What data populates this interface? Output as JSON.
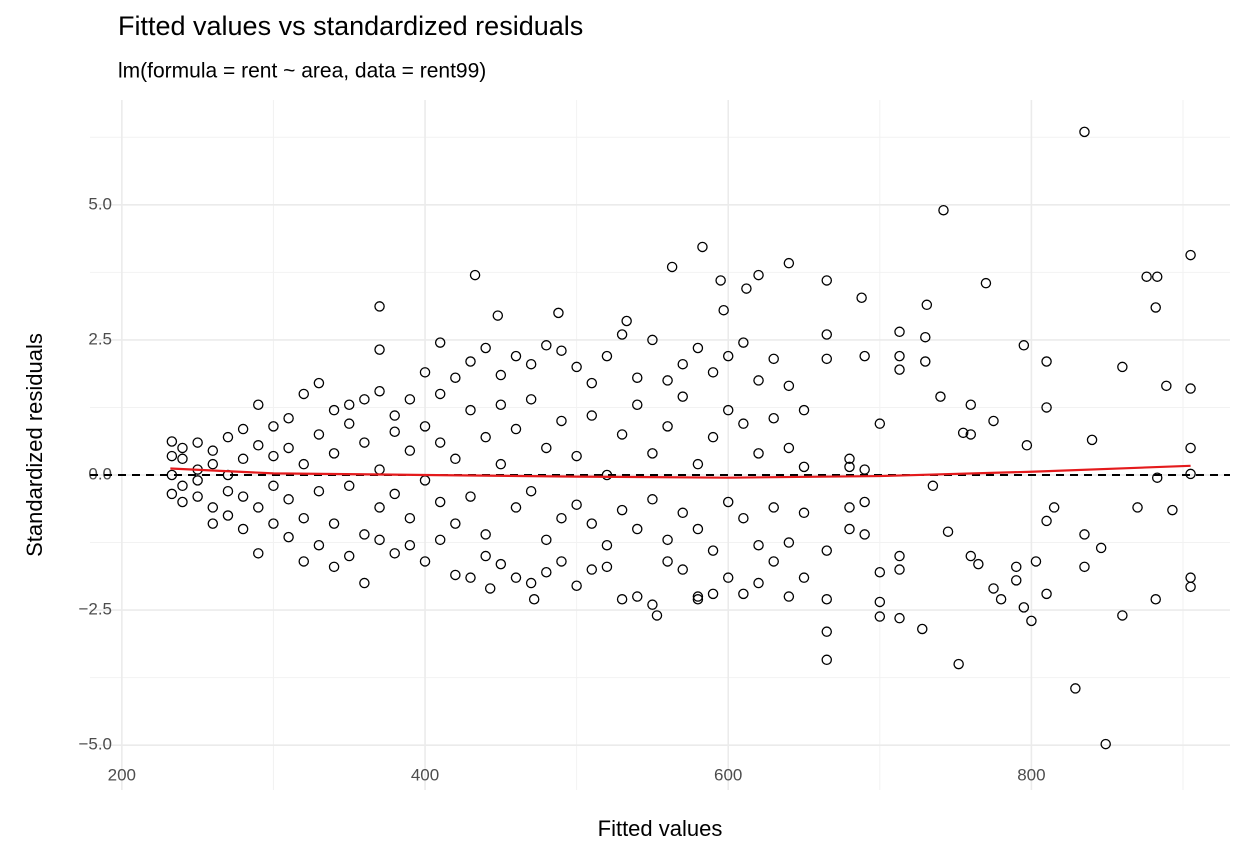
{
  "chart_data": {
    "type": "scatter",
    "title": "Fitted values vs standardized residuals",
    "subtitle": "lm(formula = rent ~ area, data = rent99)",
    "x_label": "Fitted values",
    "y_label": "Standardized residuals",
    "xlim": [
      179,
      931
    ],
    "ylim": [
      -5.83,
      6.94
    ],
    "xticks": [
      200,
      400,
      600,
      800
    ],
    "yticks": [
      {
        "value": 5,
        "label": "5.0"
      },
      {
        "value": 2.5,
        "label": "2.5"
      },
      {
        "value": 0,
        "label": "0.0"
      },
      {
        "value": -2.5,
        "label": "−2.5"
      },
      {
        "value": -5,
        "label": "−5.0"
      }
    ],
    "xminor": [
      300,
      500,
      700,
      900
    ],
    "yminor": [
      6.25,
      3.75,
      1.25,
      -1.25,
      -3.75
    ],
    "grid": true,
    "hline": 0,
    "point_color": "#000000",
    "x": [
      835,
      742,
      905,
      583,
      563,
      433,
      370,
      488,
      620,
      640,
      665,
      688,
      731,
      770,
      876,
      883,
      882,
      889,
      905,
      905,
      905,
      905,
      905,
      882,
      860,
      846,
      835,
      835,
      829,
      849,
      752,
      665,
      665,
      728,
      800,
      795,
      810,
      775,
      713,
      700,
      700,
      580,
      553,
      472,
      443,
      840,
      797,
      795,
      810,
      810,
      860,
      893,
      870,
      883,
      815,
      810,
      760,
      760,
      775,
      740,
      730,
      713,
      713,
      730,
      713,
      700,
      735,
      713,
      713,
      700,
      760,
      765,
      790,
      790,
      803,
      745,
      755,
      780,
      233,
      233,
      233,
      233,
      410,
      448,
      370,
      533,
      595,
      612,
      597,
      240,
      240,
      240,
      240,
      250,
      250,
      250,
      250,
      260,
      260,
      260,
      260,
      270,
      270,
      270,
      270,
      280,
      280,
      280,
      280,
      290,
      290,
      290,
      290,
      300,
      300,
      300,
      300,
      310,
      310,
      310,
      310,
      320,
      320,
      320,
      320,
      330,
      330,
      330,
      330,
      340,
      340,
      340,
      340,
      350,
      350,
      350,
      350,
      360,
      360,
      360,
      360,
      370,
      370,
      370,
      370,
      380,
      380,
      380,
      380,
      390,
      390,
      390,
      390,
      400,
      400,
      400,
      400,
      410,
      410,
      410,
      410,
      420,
      420,
      420,
      420,
      430,
      430,
      430,
      430,
      440,
      440,
      440,
      440,
      450,
      450,
      450,
      450,
      460,
      460,
      460,
      460,
      470,
      470,
      470,
      470,
      480,
      480,
      480,
      480,
      490,
      490,
      490,
      490,
      500,
      500,
      500,
      500,
      510,
      510,
      510,
      510,
      520,
      520,
      520,
      520,
      530,
      530,
      530,
      530,
      540,
      540,
      540,
      540,
      550,
      550,
      550,
      550,
      560,
      560,
      560,
      560,
      570,
      570,
      570,
      570,
      580,
      580,
      580,
      580,
      590,
      590,
      590,
      590,
      600,
      600,
      600,
      600,
      610,
      610,
      610,
      610,
      620,
      620,
      620,
      620,
      630,
      630,
      630,
      630,
      640,
      640,
      640,
      640,
      650,
      650,
      650,
      650,
      665,
      665,
      665,
      665,
      680,
      680,
      680,
      680,
      690,
      690,
      690,
      690
    ],
    "values": [
      6.35,
      4.9,
      4.07,
      4.22,
      3.85,
      3.7,
      3.12,
      3.0,
      3.7,
      3.92,
      3.6,
      3.28,
      3.15,
      3.55,
      3.67,
      3.67,
      3.1,
      1.65,
      1.6,
      0.5,
      0.02,
      -1.9,
      -2.07,
      -2.3,
      -2.6,
      -1.35,
      -1.1,
      -1.7,
      -3.95,
      -4.98,
      -3.5,
      -3.42,
      -2.9,
      -2.85,
      -2.7,
      -2.45,
      -2.2,
      -2.1,
      -2.65,
      -2.62,
      -2.35,
      -2.25,
      -2.6,
      -2.3,
      -2.1,
      0.65,
      0.55,
      2.4,
      2.1,
      1.25,
      2.0,
      -0.65,
      -0.6,
      -0.05,
      -0.6,
      -0.85,
      0.75,
      1.3,
      1.0,
      1.45,
      2.55,
      2.65,
      2.2,
      2.1,
      1.95,
      0.95,
      -0.2,
      -1.5,
      -1.75,
      -1.8,
      -1.5,
      -1.65,
      -1.7,
      -1.95,
      -1.6,
      -1.05,
      0.78,
      -2.3,
      0.62,
      0.35,
      0.0,
      -0.35,
      2.45,
      2.95,
      2.32,
      2.85,
      3.6,
      3.45,
      3.05,
      0.3,
      -0.2,
      0.5,
      -0.5,
      0.1,
      -0.4,
      0.6,
      -0.1,
      0.45,
      -0.6,
      0.2,
      -0.9,
      0.7,
      -0.3,
      0.0,
      -0.75,
      0.85,
      -1.0,
      0.3,
      -0.4,
      1.3,
      -0.6,
      0.55,
      -1.45,
      0.9,
      -0.2,
      -0.9,
      0.35,
      1.05,
      -1.15,
      0.5,
      -0.45,
      1.5,
      -1.6,
      0.2,
      -0.8,
      0.75,
      -1.3,
      1.7,
      -0.3,
      1.2,
      -1.7,
      0.4,
      -0.9,
      0.95,
      -1.5,
      -0.2,
      1.3,
      1.4,
      -2.0,
      0.6,
      -1.1,
      1.55,
      -1.2,
      0.1,
      -0.6,
      1.1,
      -1.45,
      0.8,
      -0.35,
      1.4,
      -1.3,
      0.45,
      -0.8,
      1.9,
      -1.6,
      -0.1,
      0.9,
      1.5,
      -1.2,
      0.6,
      -0.5,
      1.8,
      -1.85,
      0.3,
      -0.9,
      2.1,
      -1.9,
      1.2,
      -0.4,
      2.35,
      -1.5,
      0.7,
      -1.1,
      1.85,
      -1.65,
      0.2,
      1.3,
      2.2,
      -1.9,
      -0.6,
      0.85,
      2.05,
      -2.0,
      1.4,
      -0.3,
      2.4,
      -1.8,
      0.5,
      -1.2,
      2.3,
      -1.6,
      -0.8,
      1.0,
      2.0,
      -2.05,
      0.35,
      -0.55,
      1.7,
      -1.75,
      1.1,
      -0.9,
      2.2,
      -1.7,
      0.0,
      -1.3,
      2.6,
      -2.3,
      0.75,
      -0.65,
      1.8,
      -2.25,
      1.3,
      -1.0,
      2.5,
      -2.4,
      0.4,
      -0.45,
      1.75,
      -1.6,
      -1.2,
      0.9,
      2.05,
      -1.75,
      1.45,
      -0.7,
      2.35,
      -2.3,
      0.2,
      -1.0,
      1.9,
      -2.2,
      0.7,
      -1.4,
      2.2,
      -1.9,
      -0.5,
      1.2,
      2.45,
      -2.2,
      0.95,
      -0.8,
      1.75,
      -2.0,
      -1.3,
      0.4,
      2.15,
      -1.6,
      1.05,
      -0.6,
      1.65,
      -2.25,
      0.5,
      -1.25,
      1.2,
      -1.9,
      -0.7,
      0.15,
      2.6,
      -2.3,
      2.15,
      -1.4,
      0.15,
      -0.6,
      -1.0,
      0.3,
      2.2,
      -0.5,
      -1.1,
      0.1
    ],
    "smooth": {
      "color": "#e41a1c",
      "x": [
        232,
        300,
        400,
        500,
        600,
        700,
        800,
        905
      ],
      "values": [
        0.12,
        0.03,
        0.0,
        -0.03,
        -0.05,
        -0.02,
        0.06,
        0.17
      ]
    }
  }
}
